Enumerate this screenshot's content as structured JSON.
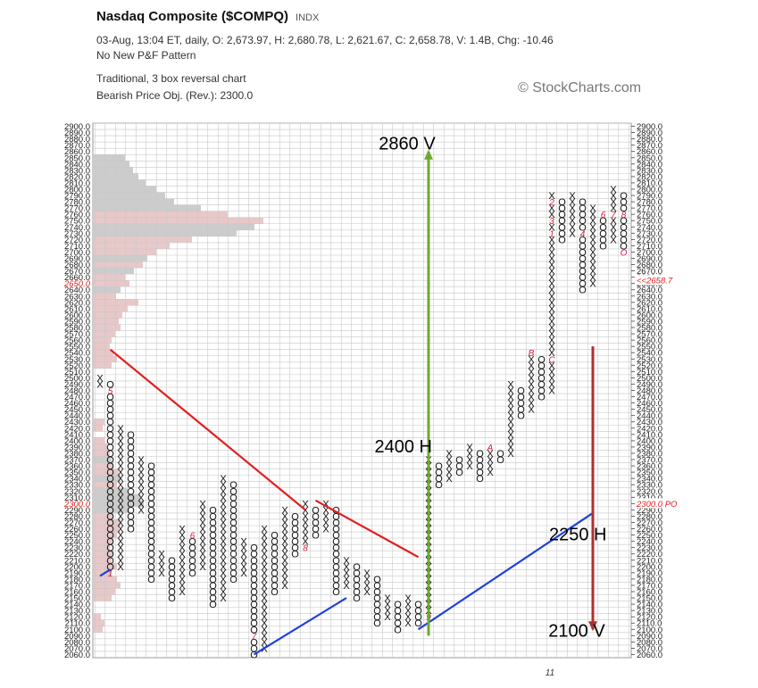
{
  "header": {
    "title": "Nasdaq Composite ($COMPQ)",
    "index_tag": "INDX",
    "stats": "03-Aug, 13:04 ET, daily, O: 2,673.97, H: 2,680.78, L: 2,621.67, C: 2,658.78, V: 1.4B, Chg: -10.46",
    "pattern": "No New P&F Pattern",
    "chart_kind": "Traditional, 3 box reversal chart",
    "price_objective": "Bearish Price Obj. (Rev.): 2300.0",
    "watermark": "© StockCharts.com"
  },
  "chart_data": {
    "type": "point-and-figure",
    "box_size": 10,
    "reversal": 3,
    "ylim": [
      2060,
      2900
    ],
    "ticks": [
      2900.0,
      2890.0,
      2880.0,
      2870.0,
      2860.0,
      2850.0,
      2840.0,
      2830.0,
      2820.0,
      2810.0,
      2800.0,
      2790.0,
      2780.0,
      2770.0,
      2760.0,
      2750.0,
      2740.0,
      2730.0,
      2720.0,
      2710.0,
      2700.0,
      2690.0,
      2680.0,
      2670.0,
      2660.0,
      2650.0,
      2640.0,
      2630.0,
      2620.0,
      2610.0,
      2600.0,
      2590.0,
      2580.0,
      2570.0,
      2560.0,
      2550.0,
      2540.0,
      2530.0,
      2520.0,
      2510.0,
      2500.0,
      2490.0,
      2480.0,
      2470.0,
      2460.0,
      2450.0,
      2440.0,
      2430.0,
      2420.0,
      2410.0,
      2400.0,
      2390.0,
      2380.0,
      2370.0,
      2360.0,
      2350.0,
      2340.0,
      2330.0,
      2320.0,
      2310.0,
      2300.0,
      2290.0,
      2280.0,
      2270.0,
      2260.0,
      2250.0,
      2240.0,
      2230.0,
      2220.0,
      2210.0,
      2200.0,
      2190.0,
      2180.0,
      2170.0,
      2160.0,
      2150.0,
      2140.0,
      2130.0,
      2120.0,
      2110.0,
      2100.0,
      2090.0,
      2080.0,
      2070.0,
      2060.0
    ],
    "left_highlights": [
      {
        "value": 2650.0,
        "text": "2650.0",
        "color": "#e02020"
      },
      {
        "value": 2300.0,
        "text": "2300.0",
        "color": "#e02020"
      }
    ],
    "right_highlights": [
      {
        "value": 2655,
        "text": "<<2658.7",
        "color": "#e02020"
      },
      {
        "value": 2300,
        "text": "2300.0 PO",
        "color": "#e02020"
      }
    ],
    "x_label": "11",
    "columns": [
      {
        "type": "X",
        "low": 2490,
        "high": 2500,
        "month_marks": []
      },
      {
        "type": "O",
        "low": 2190,
        "high": 2490,
        "month_marks": [
          {
            "value": 2480,
            "mark": "5"
          },
          {
            "value": 2190,
            "mark": "1"
          }
        ]
      },
      {
        "type": "X",
        "low": 2200,
        "high": 2420
      },
      {
        "type": "O",
        "low": 2260,
        "high": 2410
      },
      {
        "type": "X",
        "low": 2290,
        "high": 2370
      },
      {
        "type": "O",
        "low": 2180,
        "high": 2360
      },
      {
        "type": "X",
        "low": 2190,
        "high": 2220
      },
      {
        "type": "O",
        "low": 2150,
        "high": 2210
      },
      {
        "type": "X",
        "low": 2160,
        "high": 2260
      },
      {
        "type": "O",
        "low": 2190,
        "high": 2250,
        "month_marks": [
          {
            "value": 2250,
            "mark": "6"
          }
        ]
      },
      {
        "type": "X",
        "low": 2200,
        "high": 2300
      },
      {
        "type": "O",
        "low": 2140,
        "high": 2290
      },
      {
        "type": "X",
        "low": 2150,
        "high": 2340
      },
      {
        "type": "O",
        "low": 2180,
        "high": 2330
      },
      {
        "type": "X",
        "low": 2190,
        "high": 2240
      },
      {
        "type": "O",
        "low": 2060,
        "high": 2230,
        "month_marks": [
          {
            "value": 2090,
            "mark": "7"
          }
        ]
      },
      {
        "type": "X",
        "low": 2070,
        "high": 2260
      },
      {
        "type": "O",
        "low": 2160,
        "high": 2250
      },
      {
        "type": "X",
        "low": 2170,
        "high": 2290
      },
      {
        "type": "O",
        "low": 2220,
        "high": 2280
      },
      {
        "type": "X",
        "low": 2230,
        "high": 2300,
        "month_marks": [
          {
            "value": 2230,
            "mark": "8"
          }
        ]
      },
      {
        "type": "O",
        "low": 2250,
        "high": 2290
      },
      {
        "type": "X",
        "low": 2260,
        "high": 2300
      },
      {
        "type": "O",
        "low": 2160,
        "high": 2290
      },
      {
        "type": "X",
        "low": 2170,
        "high": 2210
      },
      {
        "type": "O",
        "low": 2150,
        "high": 2200
      },
      {
        "type": "X",
        "low": 2160,
        "high": 2190
      },
      {
        "type": "O",
        "low": 2110,
        "high": 2180
      },
      {
        "type": "X",
        "low": 2120,
        "high": 2150
      },
      {
        "type": "O",
        "low": 2100,
        "high": 2140
      },
      {
        "type": "X",
        "low": 2110,
        "high": 2150
      },
      {
        "type": "O",
        "low": 2110,
        "high": 2140
      },
      {
        "type": "X",
        "low": 2120,
        "high": 2370,
        "month_marks": [
          {
            "value": 2120,
            "mark": "9"
          }
        ]
      },
      {
        "type": "O",
        "low": 2330,
        "high": 2360
      },
      {
        "type": "X",
        "low": 2340,
        "high": 2380
      },
      {
        "type": "O",
        "low": 2350,
        "high": 2370
      },
      {
        "type": "X",
        "low": 2360,
        "high": 2390
      },
      {
        "type": "O",
        "low": 2340,
        "high": 2380
      },
      {
        "type": "X",
        "low": 2350,
        "high": 2390,
        "month_marks": [
          {
            "value": 2390,
            "mark": "A"
          }
        ]
      },
      {
        "type": "O",
        "low": 2370,
        "high": 2380
      },
      {
        "type": "X",
        "low": 2380,
        "high": 2490
      },
      {
        "type": "O",
        "low": 2440,
        "high": 2480
      },
      {
        "type": "X",
        "low": 2450,
        "high": 2540,
        "month_marks": [
          {
            "value": 2540,
            "mark": "B"
          }
        ]
      },
      {
        "type": "O",
        "low": 2470,
        "high": 2530
      },
      {
        "type": "X",
        "low": 2480,
        "high": 2790,
        "month_marks": [
          {
            "value": 2530,
            "mark": "C"
          },
          {
            "value": 2730,
            "mark": "1"
          },
          {
            "value": 2780,
            "mark": "2"
          },
          {
            "value": 2750,
            "mark": "3"
          }
        ]
      },
      {
        "type": "O",
        "low": 2720,
        "high": 2780
      },
      {
        "type": "X",
        "low": 2730,
        "high": 2790
      },
      {
        "type": "O",
        "low": 2640,
        "high": 2780,
        "month_marks": [
          {
            "value": 2730,
            "mark": "4"
          }
        ]
      },
      {
        "type": "X",
        "low": 2650,
        "high": 2770
      },
      {
        "type": "O",
        "low": 2710,
        "high": 2760,
        "month_marks": [
          {
            "value": 2760,
            "mark": "6"
          }
        ]
      },
      {
        "type": "X",
        "low": 2720,
        "high": 2800,
        "month_marks": [
          {
            "value": 2760,
            "mark": "7"
          }
        ]
      },
      {
        "type": "O",
        "low": 2700,
        "high": 2790,
        "month_marks": [
          {
            "value": 2760,
            "mark": "8"
          },
          {
            "value": 2700,
            "mark": "O"
          }
        ]
      }
    ],
    "volume_at_price_note": "shaded horizontal bars at left",
    "trendlines": [
      {
        "name": "bearish-resistance-1",
        "color": "#e02020",
        "from": {
          "col": 1,
          "value": 2545
        },
        "to": {
          "col": 20,
          "value": 2290
        }
      },
      {
        "name": "bearish-resistance-2",
        "color": "#e02020",
        "from": {
          "col": 21,
          "value": 2305
        },
        "to": {
          "col": 31,
          "value": 2215
        }
      },
      {
        "name": "bullish-support-1",
        "color": "#2040e0",
        "from": {
          "col": 0,
          "value": 2185
        },
        "to": {
          "col": 1,
          "value": 2195
        }
      },
      {
        "name": "bullish-support-2",
        "color": "#2040e0",
        "from": {
          "col": 15,
          "value": 2060
        },
        "to": {
          "col": 24,
          "value": 2150
        }
      },
      {
        "name": "bullish-support-3",
        "color": "#2040e0",
        "from": {
          "col": 31,
          "value": 2100
        },
        "to": {
          "col": 48,
          "value": 2285
        }
      }
    ],
    "targets": [
      {
        "label": "2860 V",
        "color": "#6fa830",
        "col": 32,
        "from_value": 2090,
        "to_value": 2860
      },
      {
        "label": "2100 V",
        "color": "#b03030",
        "col": 48,
        "from_value": 2550,
        "to_value": 2100
      }
    ],
    "annotations": [
      {
        "text": "2400 H",
        "value": 2390,
        "col": 29
      },
      {
        "text": "2250 H",
        "value": 2250,
        "col": 46
      }
    ]
  }
}
